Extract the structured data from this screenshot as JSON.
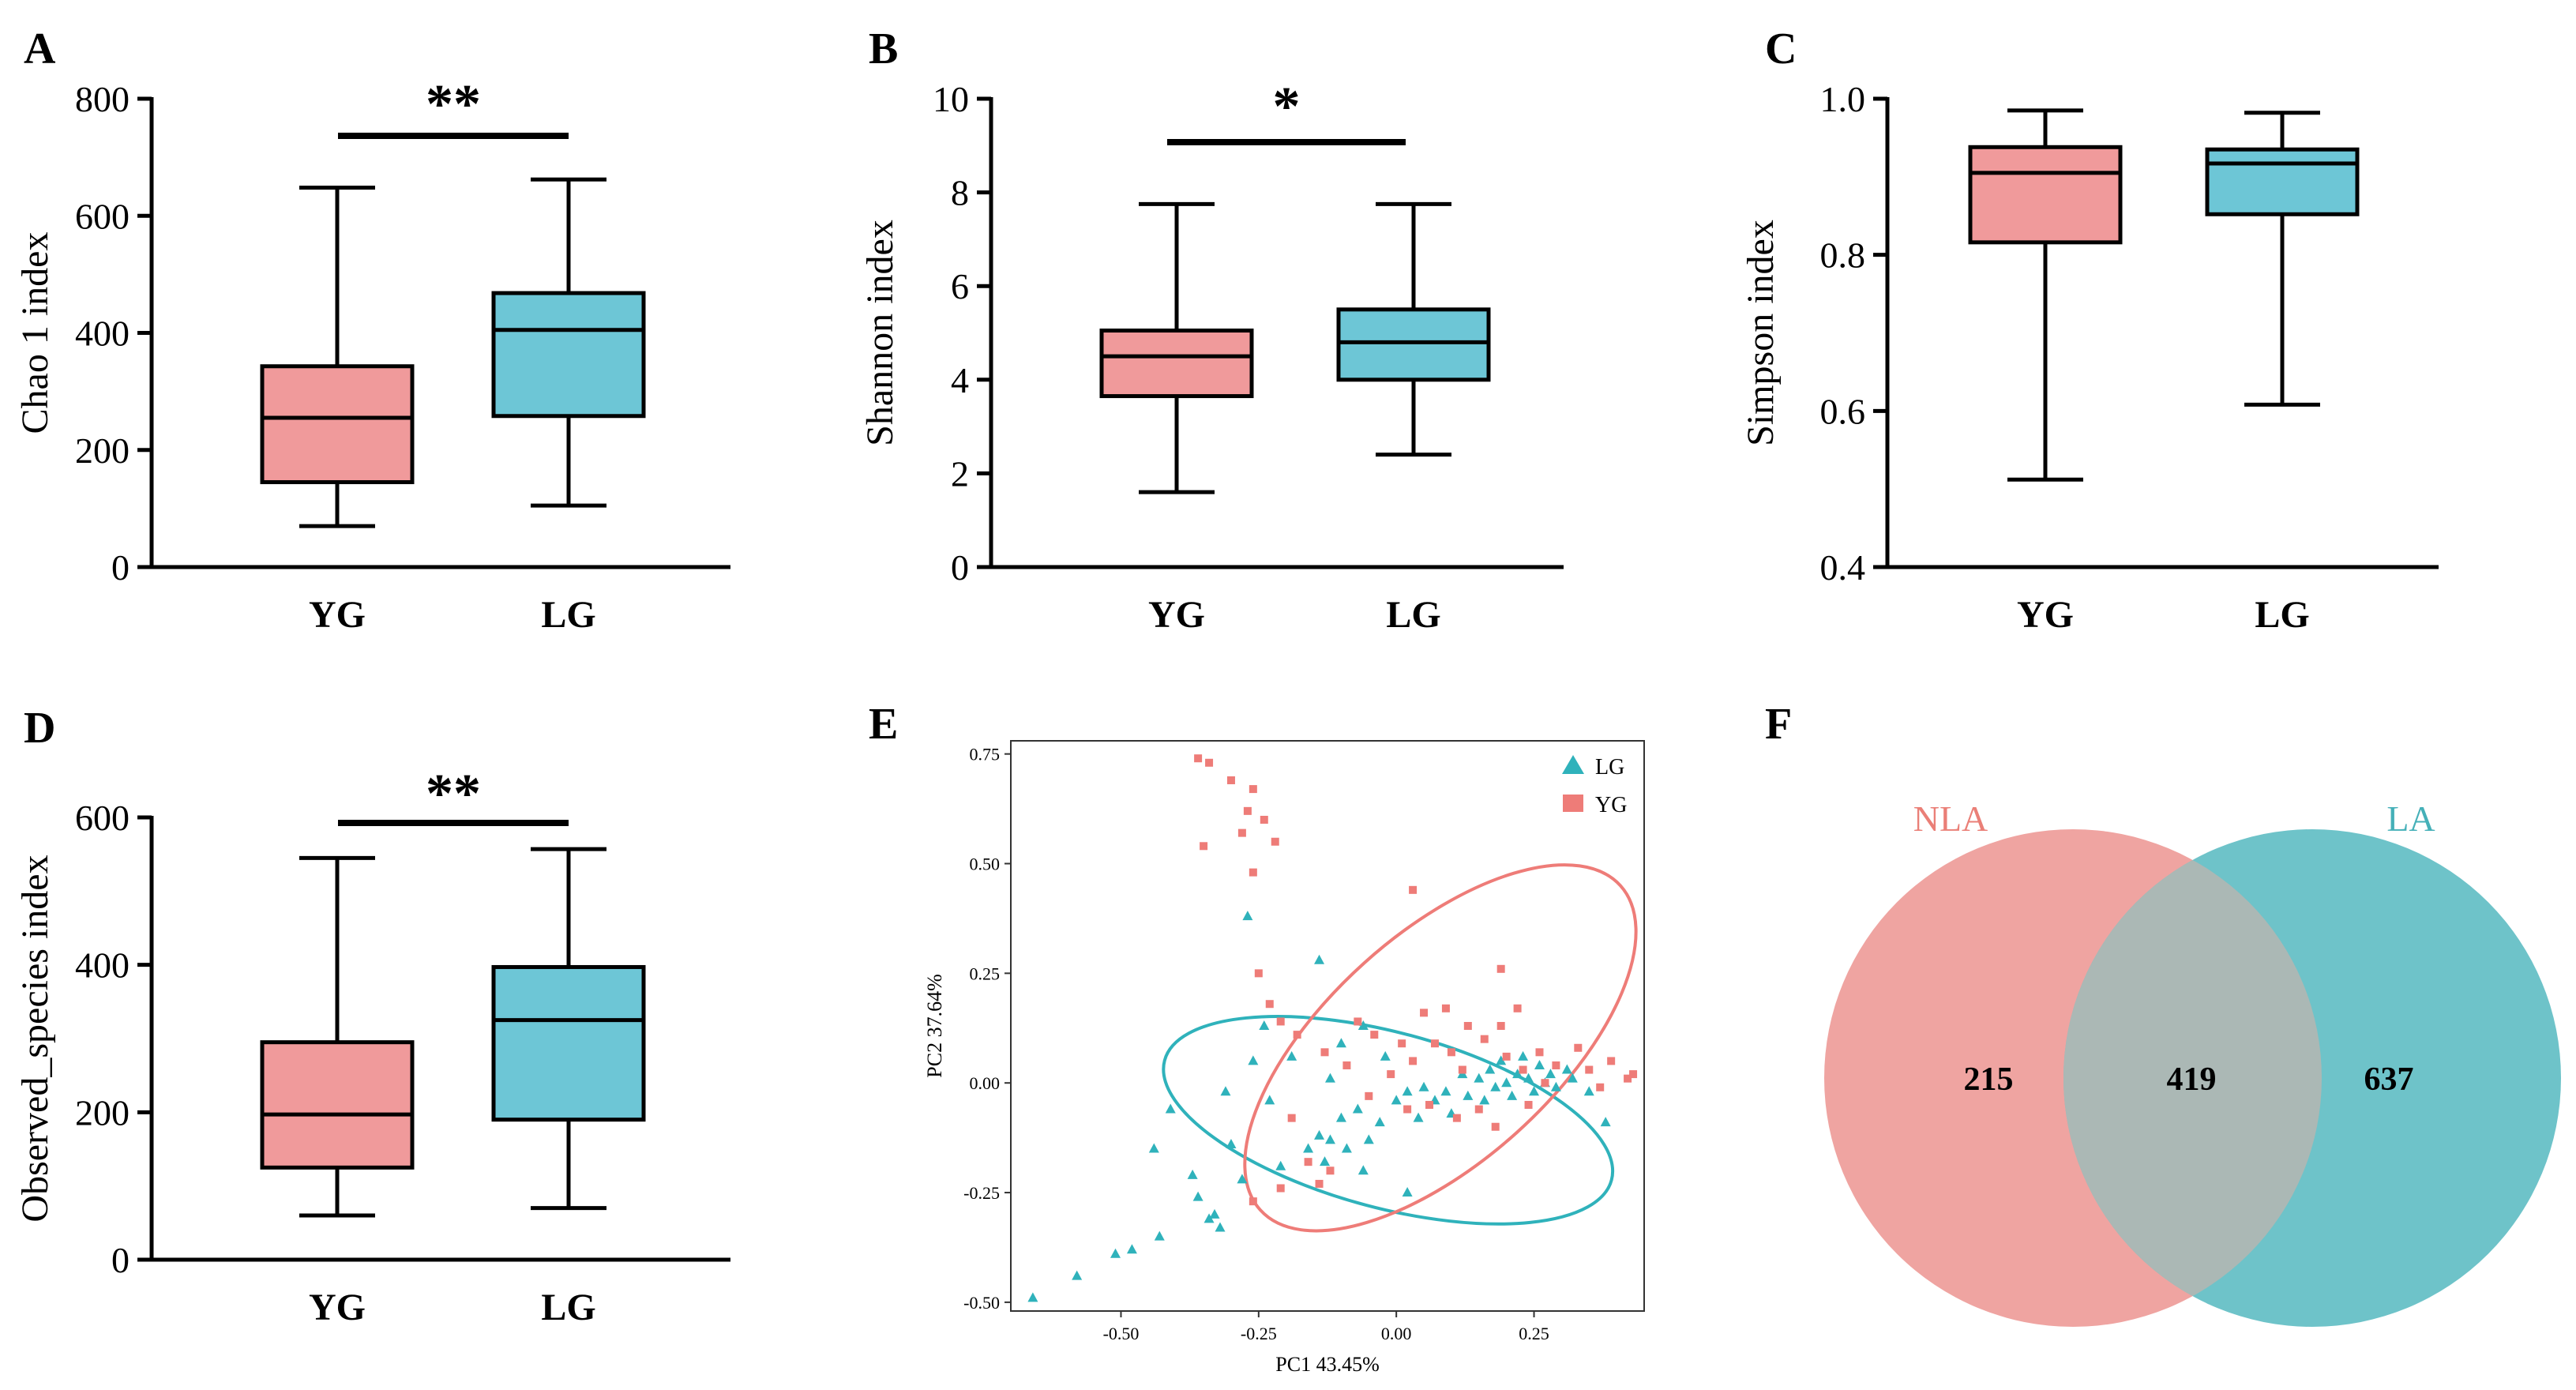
{
  "colors": {
    "yg": "#f09a9b",
    "lg": "#6dc6d6",
    "yg_point": "#ee7c78",
    "lg_point": "#2fb2bb",
    "nla_circle": "#efa4a1",
    "la_circle": "#6ec3c9",
    "overlap": "#abb8b5",
    "nla_text": "#ea7f77",
    "la_text": "#45b0b8"
  },
  "chart_data": [
    {
      "id": "A",
      "letter": "A",
      "type": "box",
      "ylabel": "Chao 1 index",
      "ylim": [
        0,
        800
      ],
      "yticks": [
        0,
        200,
        400,
        600,
        800
      ],
      "yticklabels": [
        "0",
        "200",
        "400",
        "600",
        "800"
      ],
      "categories": [
        "YG",
        "LG"
      ],
      "series": [
        {
          "name": "YG",
          "min": 70,
          "q1": 145,
          "median": 255,
          "q3": 343,
          "max": 648
        },
        {
          "name": "LG",
          "min": 105,
          "q1": 258,
          "median": 405,
          "q3": 468,
          "max": 662
        }
      ],
      "significance": "**"
    },
    {
      "id": "B",
      "letter": "B",
      "type": "box",
      "ylabel": "Shannon index",
      "ylim": [
        0,
        10
      ],
      "yticks": [
        0,
        2,
        4,
        6,
        8,
        10
      ],
      "yticklabels": [
        "0",
        "2",
        "4",
        "6",
        "8",
        "10"
      ],
      "categories": [
        "YG",
        "LG"
      ],
      "series": [
        {
          "name": "YG",
          "min": 1.6,
          "q1": 3.65,
          "median": 4.5,
          "q3": 5.05,
          "max": 7.75
        },
        {
          "name": "LG",
          "min": 2.4,
          "q1": 4.0,
          "median": 4.8,
          "q3": 5.5,
          "max": 7.75
        }
      ],
      "significance": "*"
    },
    {
      "id": "C",
      "letter": "C",
      "type": "box",
      "ylabel": "Simpson index",
      "ylim": [
        0.4,
        1.0
      ],
      "yticks": [
        0.4,
        0.6,
        0.8,
        1.0
      ],
      "yticklabels": [
        "0.4",
        "0.6",
        "0.8",
        "1.0"
      ],
      "categories": [
        "YG",
        "LG"
      ],
      "series": [
        {
          "name": "YG",
          "min": 0.512,
          "q1": 0.816,
          "median": 0.905,
          "q3": 0.938,
          "max": 0.985
        },
        {
          "name": "LG",
          "min": 0.608,
          "q1": 0.852,
          "median": 0.917,
          "q3": 0.935,
          "max": 0.982
        }
      ],
      "significance": ""
    },
    {
      "id": "D",
      "letter": "D",
      "type": "box",
      "ylabel": "Observed_species index",
      "ylim": [
        0,
        600
      ],
      "yticks": [
        0,
        200,
        400,
        600
      ],
      "yticklabels": [
        "0",
        "200",
        "400",
        "600"
      ],
      "categories": [
        "YG",
        "LG"
      ],
      "series": [
        {
          "name": "YG",
          "min": 60,
          "q1": 125,
          "median": 197,
          "q3": 295,
          "max": 545
        },
        {
          "name": "LG",
          "min": 70,
          "q1": 190,
          "median": 325,
          "q3": 397,
          "max": 557
        }
      ],
      "significance": "**"
    },
    {
      "id": "E",
      "letter": "E",
      "type": "scatter",
      "xlabel": "PC1 43.45%",
      "ylabel": "PC2 37.64%",
      "xlim": [
        -0.7,
        0.45
      ],
      "ylim": [
        -0.52,
        0.78
      ],
      "xticks": [
        -0.5,
        -0.25,
        0.0,
        0.25
      ],
      "xticklabels": [
        "-0.50",
        "-0.25",
        "0.00",
        "0.25"
      ],
      "yticks": [
        -0.5,
        -0.25,
        0.0,
        0.25,
        0.5,
        0.75
      ],
      "yticklabels": [
        "-0.50",
        "-0.25",
        "0.00",
        "0.25",
        "0.50",
        "0.75"
      ],
      "legend": [
        "LG",
        "YG"
      ],
      "series": [
        {
          "name": "LG",
          "marker": "triangle",
          "points": [
            [
              -0.66,
              -0.49
            ],
            [
              -0.58,
              -0.44
            ],
            [
              -0.51,
              -0.39
            ],
            [
              -0.48,
              -0.38
            ],
            [
              -0.43,
              -0.35
            ],
            [
              -0.34,
              -0.31
            ],
            [
              -0.32,
              -0.33
            ],
            [
              -0.36,
              -0.26
            ],
            [
              -0.44,
              -0.15
            ],
            [
              -0.41,
              -0.06
            ],
            [
              -0.37,
              -0.21
            ],
            [
              -0.3,
              -0.14
            ],
            [
              -0.28,
              -0.22
            ],
            [
              -0.31,
              -0.02
            ],
            [
              -0.26,
              0.05
            ],
            [
              -0.23,
              -0.04
            ],
            [
              -0.27,
              0.38
            ],
            [
              -0.24,
              0.13
            ],
            [
              -0.19,
              0.06
            ],
            [
              -0.14,
              0.28
            ],
            [
              -0.12,
              0.01
            ],
            [
              -0.1,
              0.09
            ],
            [
              -0.06,
              0.13
            ],
            [
              -0.02,
              0.06
            ],
            [
              -0.16,
              -0.15
            ],
            [
              -0.14,
              -0.12
            ],
            [
              -0.12,
              -0.13
            ],
            [
              -0.09,
              -0.15
            ],
            [
              -0.1,
              -0.08
            ],
            [
              -0.07,
              -0.06
            ],
            [
              -0.05,
              -0.13
            ],
            [
              -0.03,
              -0.09
            ],
            [
              0.0,
              -0.04
            ],
            [
              0.02,
              -0.02
            ],
            [
              0.04,
              -0.08
            ],
            [
              0.05,
              -0.01
            ],
            [
              0.07,
              -0.04
            ],
            [
              0.09,
              -0.02
            ],
            [
              0.1,
              -0.07
            ],
            [
              0.12,
              0.02
            ],
            [
              0.13,
              -0.03
            ],
            [
              0.15,
              0.01
            ],
            [
              0.16,
              -0.04
            ],
            [
              0.17,
              0.03
            ],
            [
              0.18,
              -0.01
            ],
            [
              0.19,
              0.05
            ],
            [
              0.2,
              0.0
            ],
            [
              0.21,
              -0.03
            ],
            [
              0.22,
              0.02
            ],
            [
              0.23,
              0.06
            ],
            [
              0.24,
              0.01
            ],
            [
              0.25,
              -0.02
            ],
            [
              0.26,
              0.04
            ],
            [
              0.27,
              0.0
            ],
            [
              0.28,
              0.02
            ],
            [
              0.29,
              -0.01
            ],
            [
              0.31,
              0.03
            ],
            [
              0.32,
              0.01
            ],
            [
              0.35,
              -0.02
            ],
            [
              0.38,
              -0.09
            ],
            [
              0.02,
              -0.25
            ],
            [
              -0.06,
              -0.2
            ],
            [
              -0.13,
              -0.18
            ],
            [
              -0.33,
              -0.3
            ],
            [
              -0.21,
              -0.19
            ]
          ]
        },
        {
          "name": "YG",
          "marker": "square",
          "points": [
            [
              -0.36,
              0.74
            ],
            [
              -0.34,
              0.73
            ],
            [
              -0.3,
              0.69
            ],
            [
              -0.26,
              0.67
            ],
            [
              -0.27,
              0.62
            ],
            [
              -0.24,
              0.6
            ],
            [
              -0.22,
              0.55
            ],
            [
              -0.28,
              0.57
            ],
            [
              -0.35,
              0.54
            ],
            [
              -0.26,
              0.48
            ],
            [
              0.03,
              0.44
            ],
            [
              0.19,
              0.26
            ],
            [
              -0.25,
              0.25
            ],
            [
              -0.23,
              0.18
            ],
            [
              -0.21,
              0.14
            ],
            [
              -0.18,
              0.11
            ],
            [
              -0.13,
              0.07
            ],
            [
              -0.09,
              0.04
            ],
            [
              -0.04,
              0.11
            ],
            [
              0.01,
              0.09
            ],
            [
              0.05,
              0.16
            ],
            [
              0.07,
              0.09
            ],
            [
              0.1,
              0.07
            ],
            [
              0.13,
              0.13
            ],
            [
              0.16,
              0.1
            ],
            [
              0.19,
              0.13
            ],
            [
              0.2,
              0.06
            ],
            [
              0.23,
              0.03
            ],
            [
              0.26,
              0.07
            ],
            [
              0.29,
              0.04
            ],
            [
              0.33,
              0.08
            ],
            [
              0.35,
              0.03
            ],
            [
              0.37,
              -0.01
            ],
            [
              0.39,
              0.05
            ],
            [
              0.42,
              0.01
            ],
            [
              0.43,
              0.02
            ],
            [
              0.06,
              -0.05
            ],
            [
              0.11,
              -0.08
            ],
            [
              0.15,
              -0.06
            ],
            [
              0.18,
              -0.1
            ],
            [
              -0.05,
              -0.03
            ],
            [
              -0.01,
              0.02
            ],
            [
              0.03,
              0.05
            ],
            [
              -0.19,
              -0.08
            ],
            [
              -0.16,
              -0.18
            ],
            [
              -0.12,
              -0.2
            ],
            [
              -0.26,
              -0.27
            ],
            [
              -0.21,
              -0.24
            ],
            [
              -0.14,
              -0.23
            ],
            [
              0.09,
              0.17
            ],
            [
              0.22,
              0.17
            ],
            [
              0.12,
              0.03
            ],
            [
              0.27,
              0.0
            ],
            [
              0.24,
              -0.05
            ],
            [
              -0.07,
              0.14
            ],
            [
              0.02,
              -0.06
            ]
          ]
        }
      ],
      "ellipses": [
        {
          "name": "LG",
          "cx": -0.015,
          "cy": -0.085,
          "rx": 0.42,
          "ry": 0.2,
          "angle_deg": 15
        },
        {
          "name": "YG",
          "cx": 0.08,
          "cy": 0.08,
          "rx": 0.44,
          "ry": 0.26,
          "angle_deg": -42
        }
      ]
    },
    {
      "id": "F",
      "letter": "F",
      "type": "venn",
      "sets": [
        {
          "name": "NLA",
          "only": 215
        },
        {
          "name": "LA",
          "only": 637
        }
      ],
      "intersection": 419
    }
  ]
}
